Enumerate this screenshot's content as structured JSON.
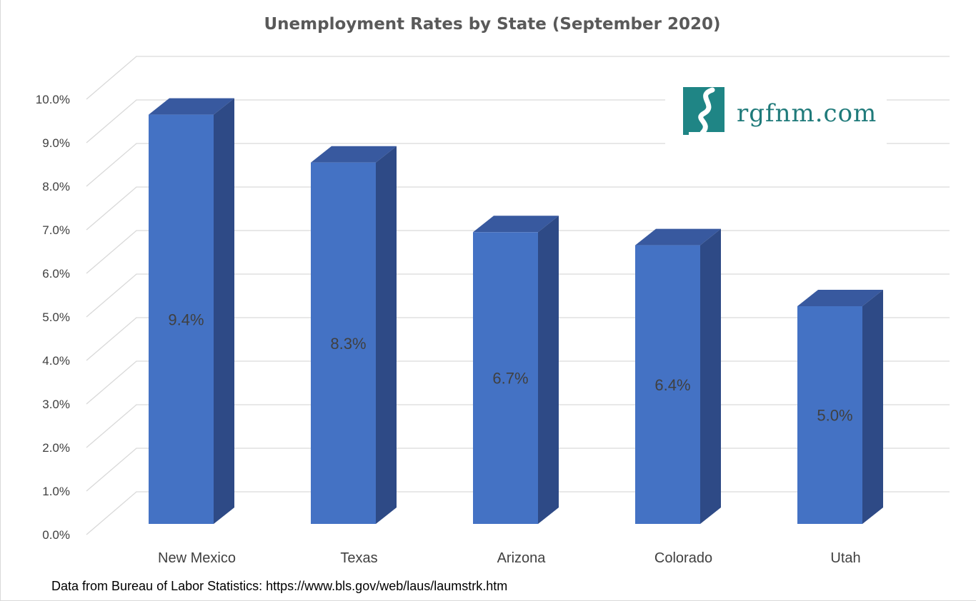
{
  "chart_data": {
    "type": "bar",
    "title": "Unemployment Rates by State (September 2020)",
    "categories": [
      "New Mexico",
      "Texas",
      "Arizona",
      "Colorado",
      "Utah"
    ],
    "values": [
      9.4,
      8.3,
      6.7,
      6.4,
      5.0
    ],
    "data_labels": [
      "9.4%",
      "8.3%",
      "6.7%",
      "6.4%",
      "5.0%"
    ],
    "value_unit": "%",
    "ylim": [
      0,
      10
    ],
    "yticks": [
      0,
      1,
      2,
      3,
      4,
      5,
      6,
      7,
      8,
      9,
      10
    ],
    "ytick_labels": [
      "0.0%",
      "1.0%",
      "2.0%",
      "3.0%",
      "4.0%",
      "5.0%",
      "6.0%",
      "7.0%",
      "8.0%",
      "9.0%",
      "10.0%"
    ],
    "xlabel": "",
    "ylabel": "",
    "grid": true,
    "legend": "none",
    "style": "3d-column"
  },
  "source_note": "Data from Bureau of Labor Statistics: https://www.bls.gov/web/laus/laumstrk.htm",
  "logo": {
    "text": "rgfnm.com"
  },
  "colors": {
    "bar_front": "#4472c4",
    "bar_side": "#2e4a86",
    "bar_top": "#38599f",
    "gridline": "#d9d9d9",
    "logo": "#1f7a7a"
  }
}
